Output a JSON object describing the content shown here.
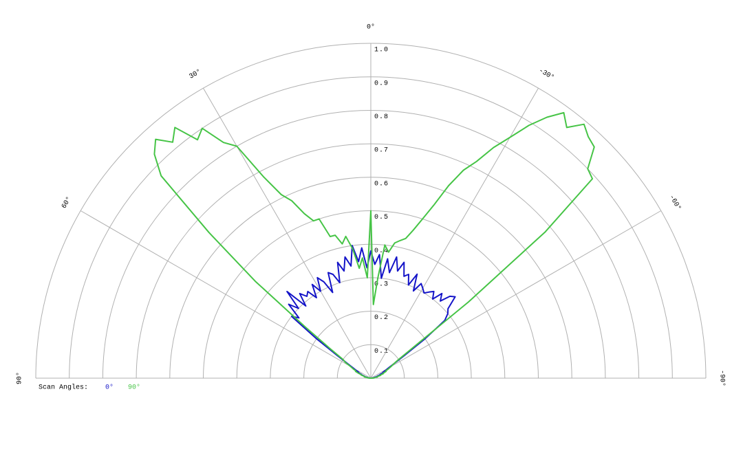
{
  "chart_data": {
    "type": "polar",
    "legend_title": "Scan Angles:",
    "theta": [
      -90,
      -88,
      -86,
      -84,
      -82,
      -80,
      -78,
      -76,
      -74,
      -72,
      -70,
      -68,
      -66,
      -64,
      -62,
      -60,
      -58,
      -56,
      -54,
      -52,
      -50,
      -48,
      -46,
      -44,
      -42,
      -40,
      -38,
      -36,
      -34,
      -32,
      -30,
      -28,
      -26,
      -24,
      -22,
      -20,
      -18,
      -16,
      -14,
      -12,
      -10,
      -8,
      -6,
      -4,
      -2,
      0,
      2,
      4,
      6,
      8,
      10,
      12,
      14,
      16,
      18,
      20,
      22,
      24,
      26,
      28,
      30,
      32,
      34,
      36,
      38,
      40,
      42,
      44,
      46,
      48,
      50,
      52,
      54,
      56,
      58,
      60,
      62,
      64,
      66,
      68,
      70,
      72,
      74,
      76,
      78,
      80,
      82,
      84,
      86,
      88,
      90
    ],
    "rlim": [
      0,
      1
    ],
    "rticks": [
      0.1,
      0.2,
      0.3,
      0.4,
      0.5,
      0.6,
      0.7,
      0.8,
      0.9,
      {
        "value": 1,
        "label": "1.0"
      }
    ],
    "thetaticks": [
      {
        "value": 0,
        "label": "0°"
      },
      {
        "value": 30,
        "label": "30°"
      },
      {
        "value": -30,
        "label": "-30°"
      },
      {
        "value": 60,
        "label": "60°"
      },
      {
        "value": -60,
        "label": "-60°"
      },
      {
        "value": 90,
        "label": "90°"
      },
      {
        "value": -90,
        "label": "-90°"
      }
    ],
    "series": [
      {
        "name": "0°",
        "color": "#1414c8",
        "values": [
          0,
          0,
          0,
          0.01,
          0.01,
          0.01,
          0.01,
          0.02,
          0.02,
          0.02,
          0.03,
          0.03,
          0.04,
          0.04,
          0.05,
          0.06,
          0.08,
          0.12,
          0.2,
          0.28,
          0.3,
          0.31,
          0.35,
          0.34,
          0.31,
          0.33,
          0.3,
          0.32,
          0.31,
          0.3,
          0.31,
          0.32,
          0.29,
          0.34,
          0.3,
          0.33,
          0.32,
          0.36,
          0.33,
          0.37,
          0.32,
          0.36,
          0.3,
          0.37,
          0.34,
          0.38,
          0.33,
          0.39,
          0.35,
          0.4,
          0.34,
          0.37,
          0.33,
          0.36,
          0.3,
          0.33,
          0.34,
          0.28,
          0.32,
          0.34,
          0.3,
          0.33,
          0.29,
          0.32,
          0.31,
          0.33,
          0.29,
          0.36,
          0.3,
          0.33,
          0.28,
          0.3,
          0.2,
          0.12,
          0.08,
          0.06,
          0.05,
          0.04,
          0.04,
          0.03,
          0.03,
          0.02,
          0.02,
          0.02,
          0.01,
          0.01,
          0.01,
          0.01,
          0,
          0,
          0
        ]
      },
      {
        "name": "90°",
        "color": "#46c446",
        "values": [
          0,
          0,
          0.01,
          0.01,
          0.01,
          0.02,
          0.02,
          0.02,
          0.03,
          0.03,
          0.04,
          0.04,
          0.05,
          0.05,
          0.06,
          0.07,
          0.08,
          0.1,
          0.16,
          0.37,
          0.68,
          0.89,
          0.9,
          0.96,
          0.97,
          0.99,
          0.95,
          0.98,
          0.94,
          0.89,
          0.83,
          0.78,
          0.72,
          0.68,
          0.62,
          0.55,
          0.5,
          0.46,
          0.43,
          0.42,
          0.41,
          0.38,
          0.4,
          0.3,
          0.22,
          0.5,
          0.3,
          0.36,
          0.33,
          0.39,
          0.43,
          0.41,
          0.44,
          0.44,
          0.5,
          0.5,
          0.53,
          0.58,
          0.61,
          0.68,
          0.8,
          0.83,
          0.9,
          0.88,
          0.95,
          0.92,
          0.96,
          0.93,
          0.87,
          0.65,
          0.45,
          0.25,
          0.15,
          0.1,
          0.09,
          0.07,
          0.06,
          0.05,
          0.05,
          0.04,
          0.03,
          0.03,
          0.02,
          0.02,
          0.02,
          0.01,
          0.01,
          0.01,
          0,
          0,
          0
        ]
      }
    ]
  }
}
